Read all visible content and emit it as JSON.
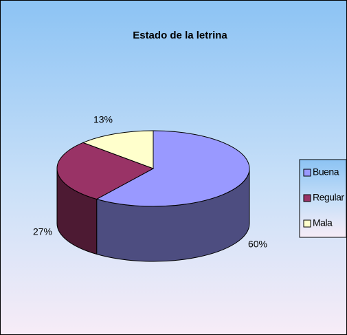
{
  "chart_data": {
    "type": "pie3d",
    "title": "Estado de la letrina",
    "categories": [
      "Buena",
      "Regular",
      "Mala"
    ],
    "values": [
      60,
      27,
      13
    ],
    "value_labels": [
      "60%",
      "27%",
      "13%"
    ],
    "colors": [
      "#9999FF",
      "#993366",
      "#FFFFCC"
    ],
    "legend": "right"
  }
}
